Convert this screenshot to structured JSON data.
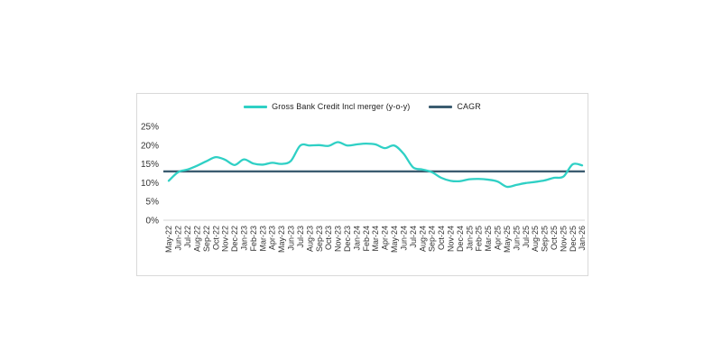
{
  "chart": {
    "panel_border_color": "#d9d9d9",
    "axis_line_color": "#d5d5d5",
    "tick_label_color": "#333333",
    "legend": [
      {
        "label": "Gross Bank Credit Incl merger (y-o-y)",
        "color": "#2fd0c5"
      },
      {
        "label": "CAGR",
        "color": "#3b5c70"
      }
    ]
  },
  "chart_data": {
    "type": "line",
    "title": "",
    "xlabel": "",
    "ylabel": "",
    "ylim": [
      0,
      25
    ],
    "ytick_labels": [
      "0%",
      "5%",
      "10%",
      "15%",
      "20%",
      "25%"
    ],
    "grid": false,
    "legend_position": "top-center",
    "categories": [
      "May-22",
      "Jun-22",
      "Jul-22",
      "Aug-22",
      "Sep-22",
      "Oct-22",
      "Nov-22",
      "Dec-22",
      "Jan-23",
      "Feb-23",
      "Mar-23",
      "Apr-23",
      "May-23",
      "Jun-23",
      "Jul-23",
      "Aug-23",
      "Sep-23",
      "Oct-23",
      "Nov-23",
      "Dec-23",
      "Jan-24",
      "Feb-24",
      "Mar-24",
      "Apr-24",
      "May-24",
      "Jun-24",
      "Jul-24",
      "Aug-24",
      "Sep-24",
      "Oct-24",
      "Nov-24",
      "Dec-24",
      "Jan-25",
      "Feb-25",
      "Mar-25",
      "Apr-25",
      "May-25",
      "Jun-25",
      "Jul-25",
      "Aug-25",
      "Sep-25",
      "Oct-25",
      "Nov-25",
      "Dec-25",
      "Jan-26"
    ],
    "series": [
      {
        "name": "Gross Bank Credit Incl merger (y-o-y)",
        "color": "#2fd0c5",
        "smooth": true,
        "values": [
          10.5,
          12.8,
          13.5,
          14.5,
          15.7,
          16.8,
          16.1,
          14.7,
          16.2,
          15.1,
          14.8,
          15.3,
          15.0,
          15.8,
          19.9,
          19.9,
          20.0,
          19.8,
          20.8,
          19.9,
          20.2,
          20.4,
          20.2,
          19.2,
          19.9,
          17.7,
          14.1,
          13.5,
          12.8,
          11.3,
          10.5,
          10.4,
          10.9,
          11.0,
          10.8,
          10.3,
          8.9,
          9.4,
          9.9,
          10.2,
          10.6,
          11.3,
          11.6,
          14.9,
          14.6
        ]
      },
      {
        "name": "CAGR",
        "color": "#3b5c70",
        "constant": 13.0
      }
    ]
  }
}
